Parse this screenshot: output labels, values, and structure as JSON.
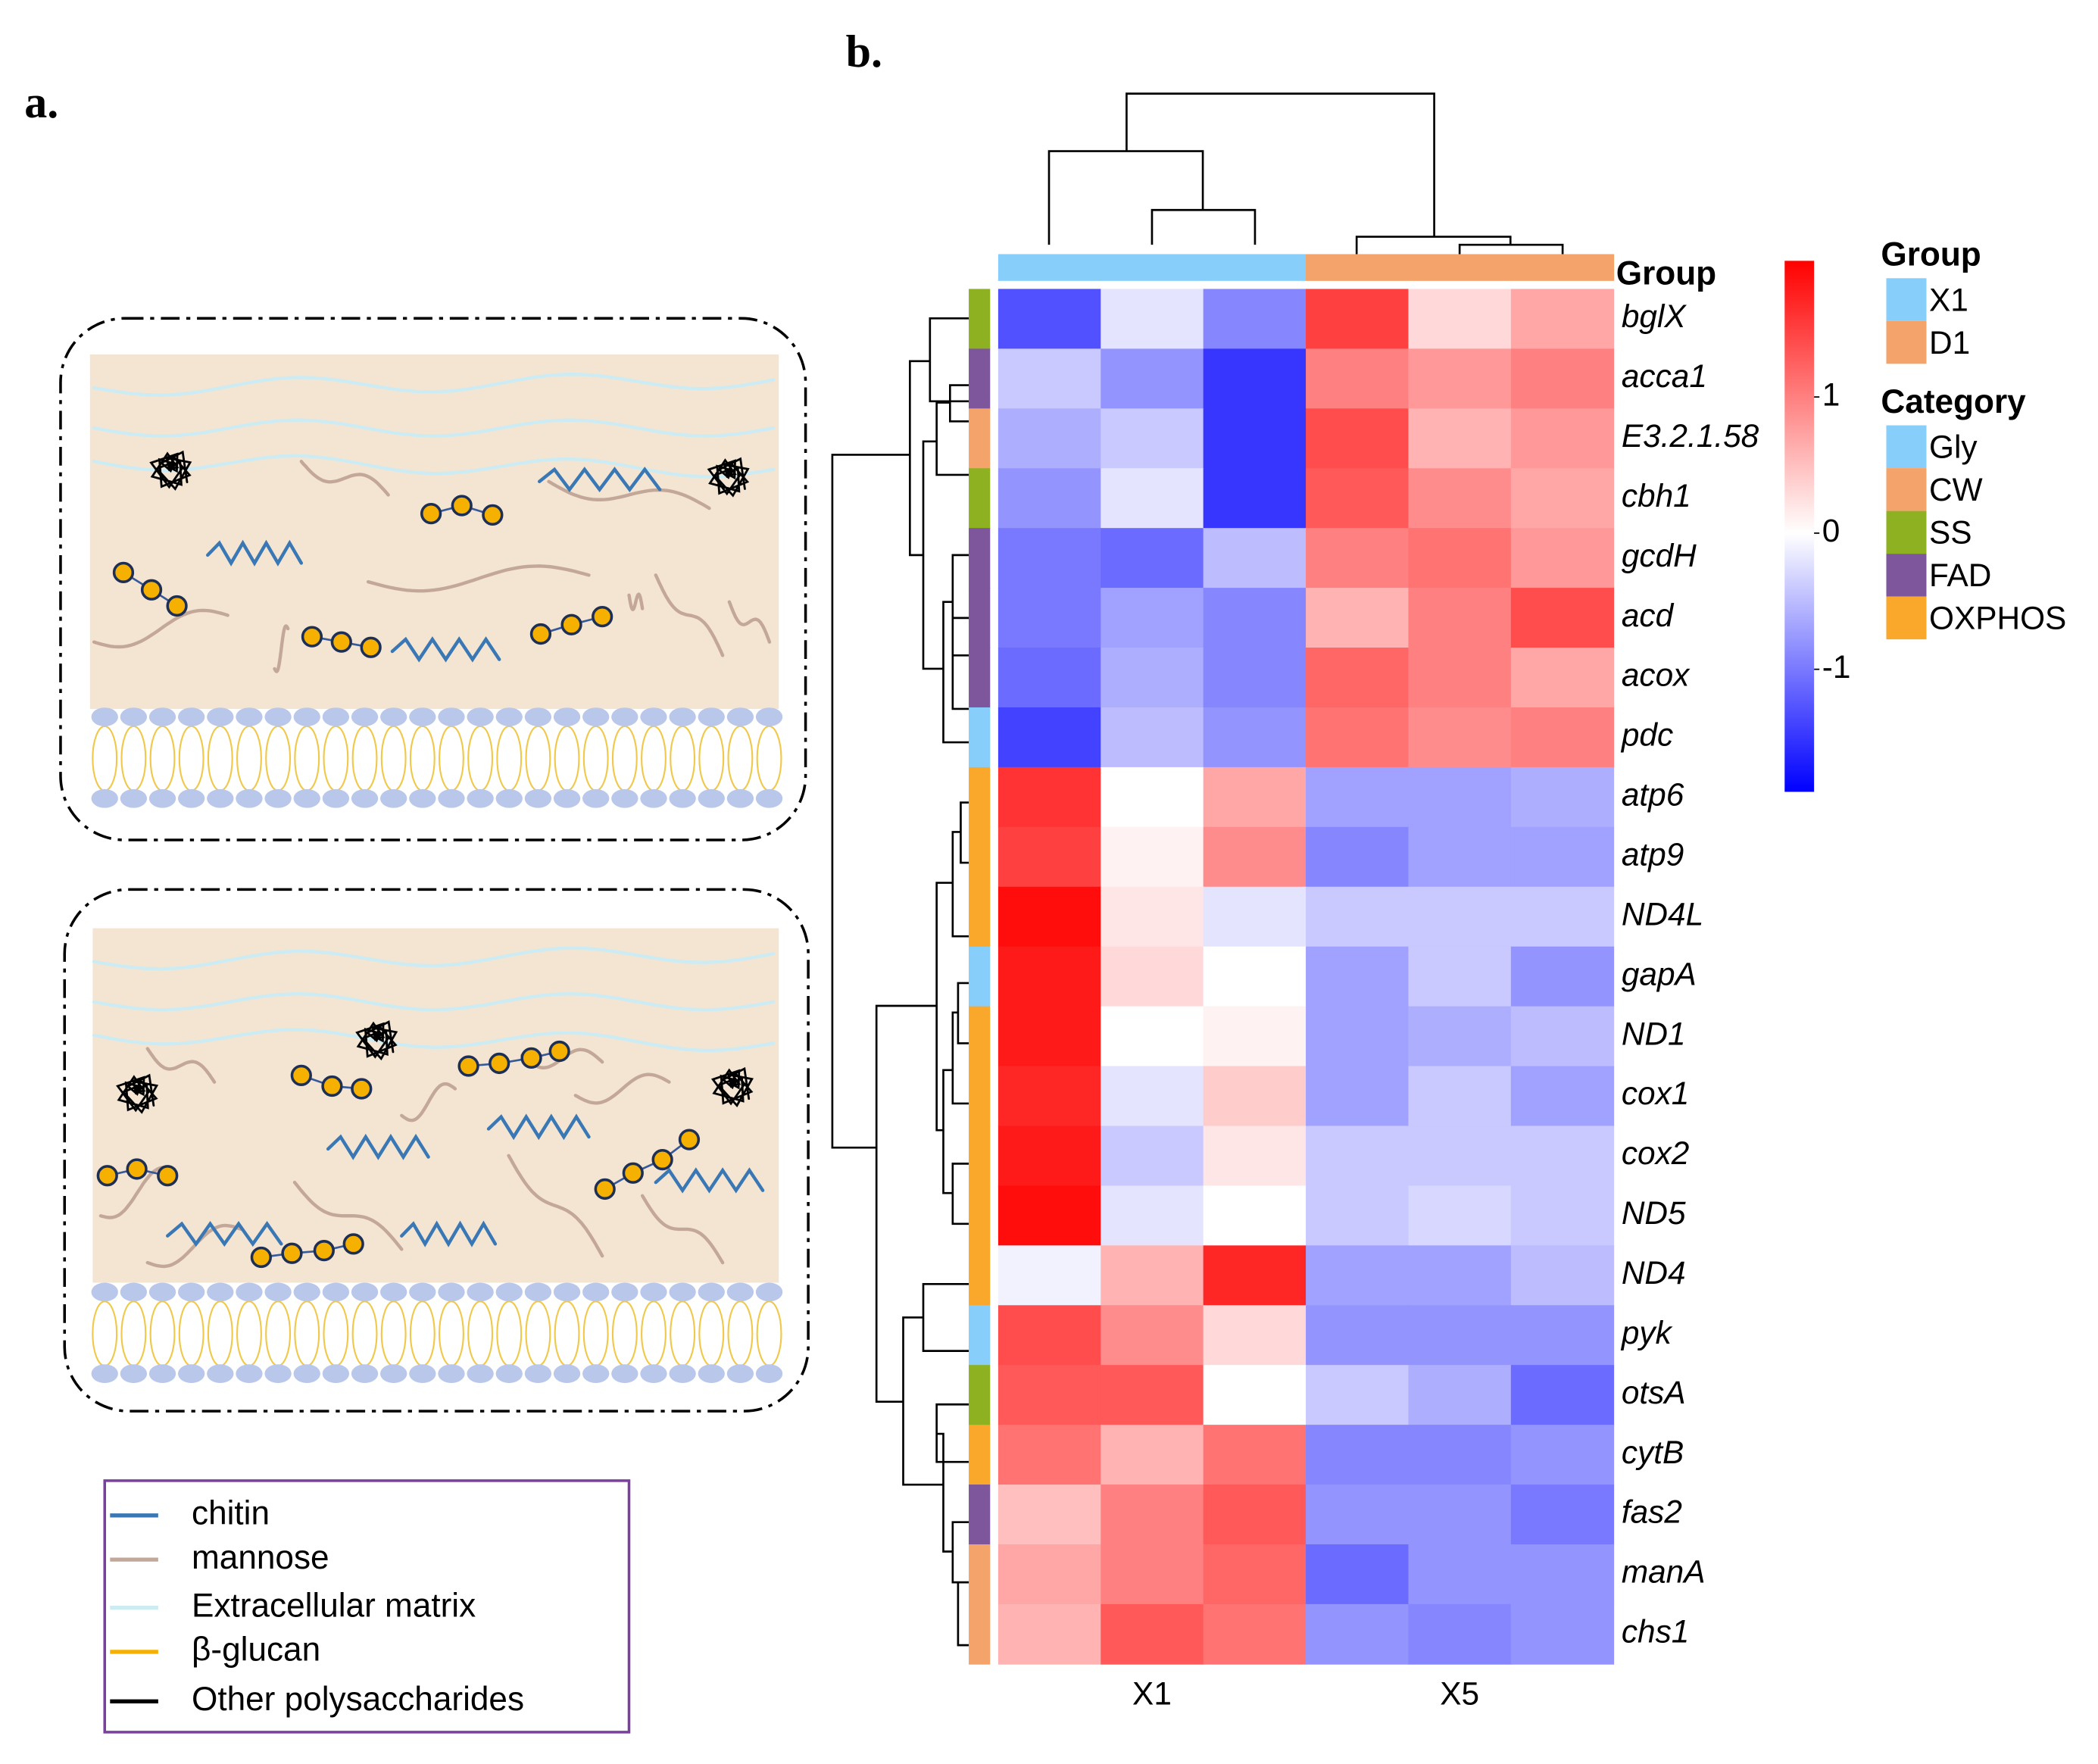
{
  "panel_a": {
    "label": "a.",
    "legend": [
      {
        "label": "chitin",
        "color": "#3a78b5"
      },
      {
        "label": "mannose",
        "color": "#c3a89a"
      },
      {
        "label": "Extracellular  matrix",
        "color": "#cdebf3"
      },
      {
        "label": "β-glucan",
        "color": "#f5b000"
      },
      {
        "label": "Other polysaccharides",
        "color": "#000000"
      }
    ]
  },
  "chart_data": {
    "type": "heatmap",
    "label": "b.",
    "rows": [
      "bglX",
      "acca1",
      "E3.2.1.58",
      "cbh1",
      "gcdH",
      "acd",
      "acox",
      "pdc",
      "atp6",
      "atp9",
      "ND4L",
      "gapA",
      "ND1",
      "cox1",
      "cox2",
      "ND5",
      "ND4",
      "pyk",
      "otsA",
      "cytB",
      "fas2",
      "manA",
      "chs1"
    ],
    "row_category": [
      "SS",
      "FAD",
      "CW",
      "SS",
      "FAD",
      "FAD",
      "FAD",
      "Gly",
      "OXPHOS",
      "OXPHOS",
      "OXPHOS",
      "Gly",
      "OXPHOS",
      "OXPHOS",
      "OXPHOS",
      "OXPHOS",
      "OXPHOS",
      "Gly",
      "SS",
      "OXPHOS",
      "FAD",
      "CW",
      "CW"
    ],
    "values": [
      [
        -1.3,
        -0.2,
        -0.9,
        1.5,
        0.3,
        0.7
      ],
      [
        -0.4,
        -0.8,
        -1.5,
        1.0,
        0.8,
        1.0
      ],
      [
        -0.6,
        -0.4,
        -1.5,
        1.4,
        0.6,
        0.8
      ],
      [
        -0.8,
        -0.2,
        -1.5,
        1.3,
        0.9,
        0.7
      ],
      [
        -1.0,
        -1.1,
        -0.5,
        1.0,
        1.1,
        0.8
      ],
      [
        -1.0,
        -0.7,
        -0.9,
        0.6,
        1.0,
        1.4
      ],
      [
        -1.1,
        -0.6,
        -0.9,
        1.2,
        1.0,
        0.7
      ],
      [
        -1.4,
        -0.5,
        -0.8,
        1.1,
        0.9,
        1.0
      ],
      [
        1.6,
        0.0,
        0.7,
        -0.7,
        -0.7,
        -0.6
      ],
      [
        1.5,
        0.1,
        0.9,
        -0.9,
        -0.7,
        -0.7
      ],
      [
        1.9,
        0.2,
        -0.2,
        -0.4,
        -0.4,
        -0.4
      ],
      [
        1.8,
        0.3,
        0.0,
        -0.7,
        -0.4,
        -0.8
      ],
      [
        1.8,
        0.0,
        0.1,
        -0.7,
        -0.6,
        -0.5
      ],
      [
        1.7,
        -0.2,
        0.4,
        -0.7,
        -0.4,
        -0.7
      ],
      [
        1.8,
        -0.4,
        0.2,
        -0.4,
        -0.4,
        -0.4
      ],
      [
        1.9,
        -0.2,
        0.0,
        -0.4,
        -0.3,
        -0.4
      ],
      [
        -0.1,
        0.6,
        1.7,
        -0.7,
        -0.7,
        -0.5
      ],
      [
        1.4,
        0.9,
        0.3,
        -0.8,
        -0.8,
        -0.8
      ],
      [
        1.3,
        1.3,
        0.0,
        -0.4,
        -0.6,
        -1.1
      ],
      [
        1.1,
        0.6,
        1.1,
        -0.9,
        -0.9,
        -0.8
      ],
      [
        0.5,
        1.0,
        1.3,
        -0.8,
        -0.8,
        -1.0
      ],
      [
        0.7,
        1.0,
        1.2,
        -1.1,
        -0.8,
        -0.8
      ],
      [
        0.6,
        1.3,
        1.1,
        -0.8,
        -0.9,
        -0.8
      ]
    ],
    "column_group": [
      "X1",
      "X1",
      "X1",
      "D1",
      "D1",
      "D1"
    ],
    "x_labels": [
      "X1",
      "X5"
    ],
    "group_bar_label": "Group",
    "clim": [
      -1.9,
      2.0
    ],
    "cticks": [
      1,
      0,
      -1
    ],
    "colors": {
      "low": "#0000ff",
      "mid": "#ffffff",
      "high": "#ff0000"
    },
    "group_legend": {
      "title": "Group",
      "items": [
        {
          "label": "X1",
          "color": "#87cefa"
        },
        {
          "label": "D1",
          "color": "#f4a46a"
        }
      ]
    },
    "category_legend": {
      "title": "Category",
      "items": [
        {
          "label": "Gly",
          "color": "#87cefa"
        },
        {
          "label": "CW",
          "color": "#f4a46a"
        },
        {
          "label": "SS",
          "color": "#8db121"
        },
        {
          "label": "FAD",
          "color": "#7d569b"
        },
        {
          "label": "OXPHOS",
          "color": "#f9a82b"
        }
      ]
    }
  }
}
